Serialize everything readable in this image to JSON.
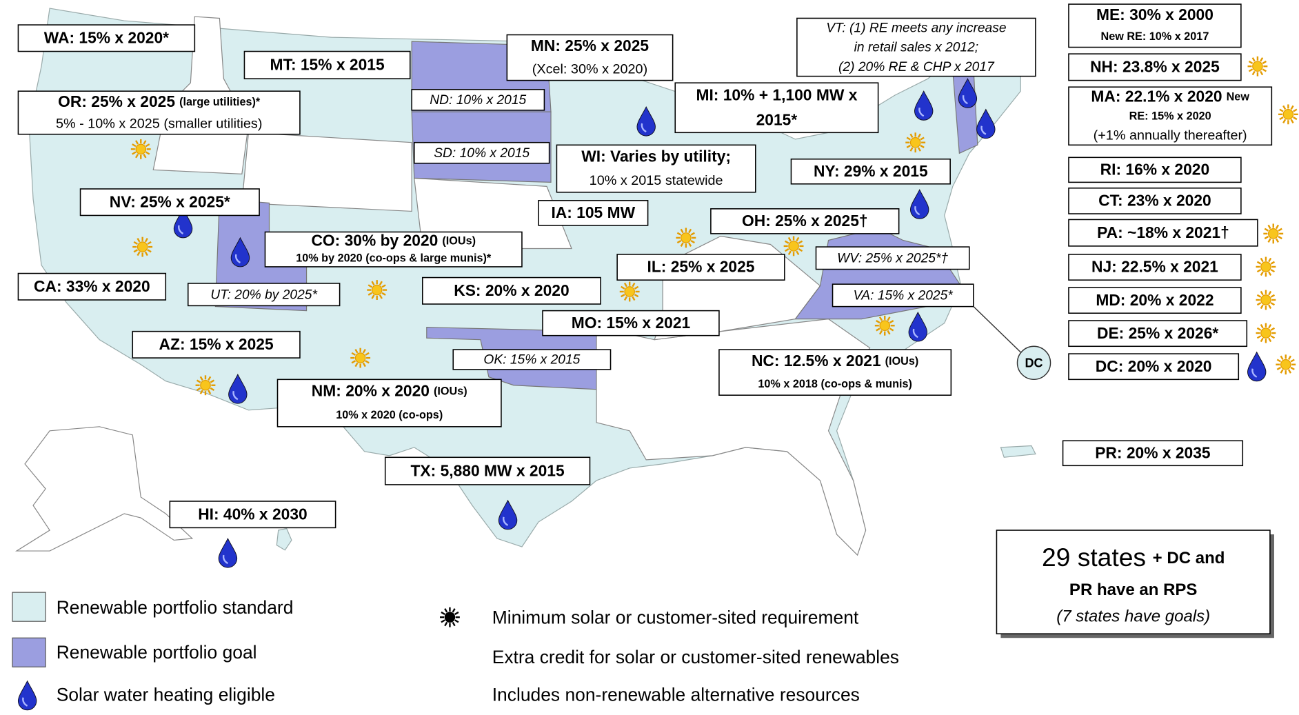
{
  "labels": [
    {
      "lines": [
        [
          "WA: 15% x 2020*"
        ]
      ]
    },
    {
      "lines": [
        [
          "MT: 15% x 2015"
        ]
      ]
    },
    {
      "lines": [
        [
          "MN: 25% x 2025"
        ],
        [
          "(Xcel: 30% x 2020)"
        ]
      ]
    },
    {
      "lines": [
        [
          "ND: 10% x 2015"
        ]
      ]
    },
    {
      "lines": [
        [
          "SD: 10% x 2015"
        ]
      ]
    },
    {
      "lines": [
        [
          "OR: 25% x 2025",
          "(large utilities)*"
        ],
        [
          "5% - 10% x 2025 (smaller utilities)"
        ]
      ]
    },
    {
      "lines": [
        [
          "VT: (1) RE meets any increase"
        ],
        [
          "in retail sales x 2012;"
        ],
        [
          "(2) 20% RE & CHP x 2017"
        ]
      ]
    },
    {
      "lines": [
        [
          "MI: 10% + 1,100 MW x"
        ],
        [
          "2015*"
        ]
      ]
    },
    {
      "lines": [
        [
          "WI: Varies by utility;"
        ],
        [
          "10% x 2015 statewide"
        ]
      ]
    },
    {
      "lines": [
        [
          "NY: 29% x 2015"
        ]
      ]
    },
    {
      "lines": [
        [
          "IA: 105 MW"
        ]
      ]
    },
    {
      "lines": [
        [
          "NV: 25% x 2025*"
        ]
      ]
    },
    {
      "lines": [
        [
          "CO: 30% by 2020",
          "(IOUs)"
        ],
        [
          "10% by 2020 (co-ops & large munis)*"
        ]
      ]
    },
    {
      "lines": [
        [
          "OH: 25% x 2025†"
        ]
      ]
    },
    {
      "lines": [
        [
          "WV: 25% x 2025*†"
        ]
      ]
    },
    {
      "lines": [
        [
          "IL: 25% x 2025"
        ]
      ]
    },
    {
      "lines": [
        [
          "CA: 33% x 2020"
        ]
      ]
    },
    {
      "lines": [
        [
          "UT: 20% by 2025*"
        ]
      ]
    },
    {
      "lines": [
        [
          "KS: 20% x 2020"
        ]
      ]
    },
    {
      "lines": [
        [
          "VA: 15% x 2025*"
        ]
      ]
    },
    {
      "lines": [
        [
          "MO: 15% x 2021"
        ]
      ]
    },
    {
      "lines": [
        [
          "AZ: 15% x 2025"
        ]
      ]
    },
    {
      "lines": [
        [
          "OK: 15% x 2015"
        ]
      ]
    },
    {
      "lines": [
        [
          "NC: 12.5% x 2021",
          "(IOUs)"
        ],
        [
          "10% x 2018 (co-ops & munis)"
        ]
      ]
    },
    {
      "lines": [
        [
          "NM: 20% x 2020",
          "(IOUs)"
        ],
        [
          "10% x 2020 (co-ops)"
        ]
      ]
    },
    {
      "lines": [
        [
          "TX: 5,880 MW x 2015"
        ]
      ]
    },
    {
      "lines": [
        [
          "HI: 40% x 2030"
        ]
      ]
    },
    {
      "lines": [
        [
          "ME: 30% x 2000"
        ],
        [
          "New RE: 10% x 2017"
        ]
      ]
    },
    {
      "lines": [
        [
          "NH: 23.8% x 2025"
        ]
      ]
    },
    {
      "lines": [
        [
          "MA: 22.1% x 2020",
          "New"
        ],
        [
          "RE:  15% x 2020"
        ],
        [
          "(+1% annually thereafter)"
        ]
      ]
    },
    {
      "lines": [
        [
          "RI: 16% x 2020"
        ]
      ]
    },
    {
      "lines": [
        [
          "CT: 23% x 2020"
        ]
      ]
    },
    {
      "lines": [
        [
          "PA: ~18% x 2021†"
        ]
      ]
    },
    {
      "lines": [
        [
          "NJ: 22.5% x 2021"
        ]
      ]
    },
    {
      "lines": [
        [
          "MD: 20% x 2022"
        ]
      ]
    },
    {
      "lines": [
        [
          "DE: 25% x 2026*"
        ]
      ]
    },
    {
      "lines": [
        [
          "DC: 20% x 2020"
        ]
      ]
    },
    {
      "lines": [
        [
          "PR: 20% x 2035"
        ]
      ]
    }
  ],
  "dc_marker": "DC",
  "summary": {
    "lines": [
      [
        "29 states",
        "+ DC and"
      ],
      [
        "PR have an RPS"
      ],
      [
        "(7 states have goals)"
      ]
    ]
  },
  "legend": [
    "Renewable portfolio standard",
    "Renewable portfolio goal",
    "Solar water heating eligible",
    "Minimum solar or customer-sited requirement",
    "Extra credit for solar or customer-sited renewables",
    "Includes non-renewable alternative resources"
  ]
}
